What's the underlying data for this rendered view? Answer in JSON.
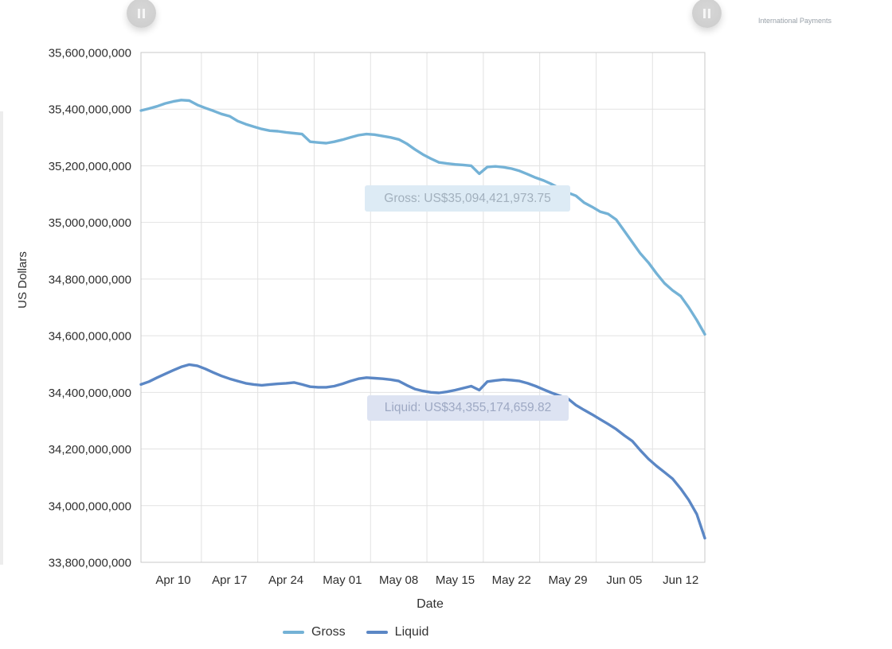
{
  "header": {
    "watermark": "International Payments",
    "left_button_icon": "pause-icon",
    "right_button_icon": "pause-icon"
  },
  "chart_data": {
    "type": "line",
    "title": "",
    "xlabel": "Date",
    "ylabel": "US Dollars",
    "unit": "USD millions",
    "grid": "on",
    "legend_position": "bottom",
    "date_range": [
      "Apr 06",
      "Jun 15"
    ],
    "ylim_millions": [
      33800,
      35600
    ],
    "y_axis": {
      "title": "US Dollars",
      "ticks": [
        {
          "label": "35,600,000,000",
          "value_m": 35600
        },
        {
          "label": "35,400,000,000",
          "value_m": 35400
        },
        {
          "label": "35,200,000,000",
          "value_m": 35200
        },
        {
          "label": "35,000,000,000",
          "value_m": 35000
        },
        {
          "label": "34,800,000,000",
          "value_m": 34800
        },
        {
          "label": "34,600,000,000",
          "value_m": 34600
        },
        {
          "label": "34,400,000,000",
          "value_m": 34400
        },
        {
          "label": "34,200,000,000",
          "value_m": 34200
        },
        {
          "label": "34,000,000,000",
          "value_m": 34000
        },
        {
          "label": "33,800,000,000",
          "value_m": 33800
        }
      ]
    },
    "x_axis": {
      "title": "Date",
      "ticks": [
        {
          "label": "Apr 10",
          "day_index": 4
        },
        {
          "label": "Apr 17",
          "day_index": 11
        },
        {
          "label": "Apr 24",
          "day_index": 18
        },
        {
          "label": "May 01",
          "day_index": 25
        },
        {
          "label": "May 08",
          "day_index": 32
        },
        {
          "label": "May 15",
          "day_index": 39
        },
        {
          "label": "May 22",
          "day_index": 46
        },
        {
          "label": "May 29",
          "day_index": 53
        },
        {
          "label": "Jun 05",
          "day_index": 60
        },
        {
          "label": "Jun 12",
          "day_index": 67
        }
      ]
    },
    "series": [
      {
        "name": "Gross",
        "color": "#74b2d6",
        "values": [
          35395,
          35402,
          35410,
          35420,
          35427,
          35432,
          35430,
          35415,
          35404,
          35394,
          35383,
          35375,
          35358,
          35347,
          35338,
          35330,
          35324,
          35322,
          35318,
          35315,
          35312,
          35285,
          35282,
          35280,
          35285,
          35292,
          35300,
          35308,
          35312,
          35310,
          35305,
          35300,
          35293,
          35278,
          35258,
          35240,
          35225,
          35212,
          35208,
          35205,
          35203,
          35200,
          35172,
          35196,
          35198,
          35195,
          35190,
          35182,
          35170,
          35158,
          35148,
          35135,
          35120,
          35105,
          35094,
          35070,
          35055,
          35038,
          35030,
          35010,
          34970,
          34930,
          34890,
          34858,
          34820,
          34785,
          34760,
          34740,
          34700,
          34655,
          34605
        ]
      },
      {
        "name": "Liquid",
        "color": "#5b87c5",
        "values": [
          34428,
          34438,
          34452,
          34465,
          34478,
          34490,
          34498,
          34494,
          34483,
          34470,
          34458,
          34448,
          34440,
          34432,
          34428,
          34425,
          34428,
          34430,
          34432,
          34435,
          34428,
          34420,
          34418,
          34418,
          34422,
          34430,
          34440,
          34448,
          34452,
          34450,
          34448,
          34445,
          34440,
          34425,
          34412,
          34405,
          34400,
          34398,
          34402,
          34408,
          34415,
          34422,
          34408,
          34438,
          34442,
          34445,
          34443,
          34440,
          34432,
          34422,
          34410,
          34398,
          34388,
          34378,
          34355,
          34338,
          34322,
          34305,
          34288,
          34270,
          34248,
          34228,
          34195,
          34165,
          34140,
          34118,
          34095,
          34060,
          34020,
          33970,
          33885
        ]
      }
    ],
    "tooltips": [
      {
        "series": "Gross",
        "text": "Gross: US$35,094,421,973.75",
        "bg": "#ddebf5",
        "fg": "#a2b0bd"
      },
      {
        "series": "Liquid",
        "text": "Liquid: US$34,355,174,659.82",
        "bg": "#dde3f2",
        "fg": "#9da8c3"
      }
    ],
    "legend": [
      "Gross",
      "Liquid"
    ]
  }
}
